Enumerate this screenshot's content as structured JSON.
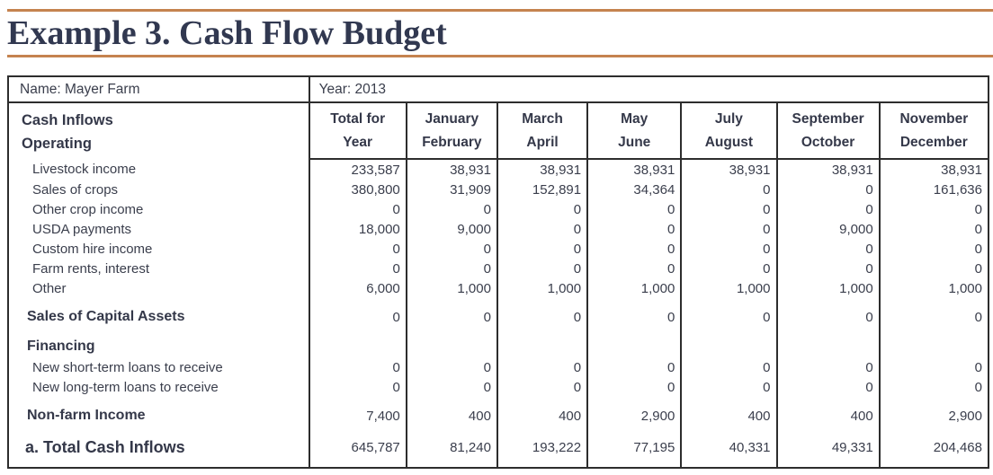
{
  "page": {
    "title": "Example 3. Cash Flow Budget",
    "accent_color": "#c5834f",
    "title_color": "#313850"
  },
  "table": {
    "meta": {
      "name": "Name: Mayer Farm",
      "year": "Year: 2013"
    },
    "header": {
      "label_line1": "Cash Inflows",
      "label_line2": "Operating",
      "columns": [
        {
          "line1": "Total for",
          "line2": "Year"
        },
        {
          "line1": "January",
          "line2": "February"
        },
        {
          "line1": "March",
          "line2": "April"
        },
        {
          "line1": "May",
          "line2": "June"
        },
        {
          "line1": "July",
          "line2": "August"
        },
        {
          "line1": "September",
          "line2": "October"
        },
        {
          "line1": "November",
          "line2": "December"
        }
      ]
    },
    "rows": [
      {
        "label": "Livestock income",
        "style": "item",
        "gap": false,
        "values": [
          "233,587",
          "38,931",
          "38,931",
          "38,931",
          "38,931",
          "38,931",
          "38,931"
        ]
      },
      {
        "label": "Sales of crops",
        "style": "item",
        "gap": false,
        "values": [
          "380,800",
          "31,909",
          "152,891",
          "34,364",
          "0",
          "0",
          "161,636"
        ]
      },
      {
        "label": "Other crop income",
        "style": "item",
        "gap": false,
        "values": [
          "0",
          "0",
          "0",
          "0",
          "0",
          "0",
          "0"
        ]
      },
      {
        "label": "USDA payments",
        "style": "item",
        "gap": false,
        "values": [
          "18,000",
          "9,000",
          "0",
          "0",
          "0",
          "9,000",
          "0"
        ]
      },
      {
        "label": "Custom hire income",
        "style": "item",
        "gap": false,
        "values": [
          "0",
          "0",
          "0",
          "0",
          "0",
          "0",
          "0"
        ]
      },
      {
        "label": "Farm rents, interest",
        "style": "item",
        "gap": false,
        "values": [
          "0",
          "0",
          "0",
          "0",
          "0",
          "0",
          "0"
        ]
      },
      {
        "label": "Other",
        "style": "item",
        "gap": false,
        "values": [
          "6,000",
          "1,000",
          "1,000",
          "1,000",
          "1,000",
          "1,000",
          "1,000"
        ]
      },
      {
        "label": "Sales of Capital Assets",
        "style": "section",
        "gap": true,
        "values": [
          "0",
          "0",
          "0",
          "0",
          "0",
          "0",
          "0"
        ]
      },
      {
        "label": "Financing",
        "style": "section",
        "gap": true,
        "values": [
          "",
          "",
          "",
          "",
          "",
          "",
          ""
        ]
      },
      {
        "label": "New short-term loans to receive",
        "style": "item",
        "gap": false,
        "values": [
          "0",
          "0",
          "0",
          "0",
          "0",
          "0",
          "0"
        ]
      },
      {
        "label": "New long-term loans to receive",
        "style": "item",
        "gap": false,
        "values": [
          "0",
          "0",
          "0",
          "0",
          "0",
          "0",
          "0"
        ]
      },
      {
        "label": "Non-farm Income",
        "style": "section",
        "gap": true,
        "values": [
          "7,400",
          "400",
          "400",
          "2,900",
          "400",
          "400",
          "2,900"
        ]
      },
      {
        "label": "a. Total Cash Inflows",
        "style": "total",
        "gap": true,
        "values": [
          "645,787",
          "81,240",
          "193,222",
          "77,195",
          "40,331",
          "49,331",
          "204,468"
        ]
      }
    ]
  }
}
